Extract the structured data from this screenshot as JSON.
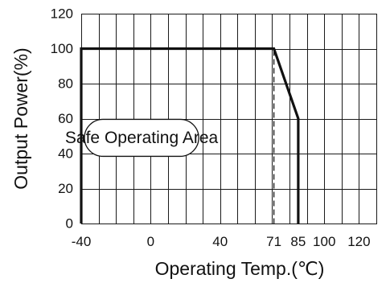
{
  "chart_data": {
    "type": "line",
    "xlabel": "Operating Temp.(℃)",
    "ylabel": "Output Power(%)",
    "x_ticks": [
      -40,
      0,
      40,
      71,
      85,
      100,
      120
    ],
    "y_ticks": [
      0,
      20,
      40,
      60,
      80,
      100,
      120
    ],
    "xlim": [
      -40,
      130
    ],
    "ylim": [
      0,
      120
    ],
    "grid": true,
    "grid_x_step": 10,
    "grid_y_step": 20,
    "series": [
      {
        "x": [
          -40,
          -40,
          71,
          85,
          85
        ],
        "y": [
          0,
          100,
          100,
          60,
          0
        ],
        "color": "#111111"
      }
    ],
    "reference_lines": [
      {
        "x": 71,
        "y_range": [
          0,
          100
        ],
        "style": "dashed"
      }
    ],
    "annotations": [
      {
        "text": "Safe Operating Area",
        "x_range": [
          -40,
          30
        ],
        "y": 49
      }
    ]
  }
}
